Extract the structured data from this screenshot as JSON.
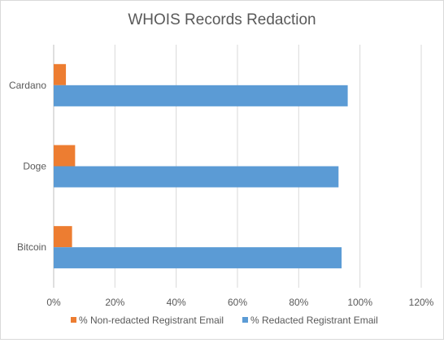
{
  "chart_data": {
    "type": "bar",
    "orientation": "horizontal",
    "title": "WHOIS Records Redaction",
    "categories": [
      "Bitcoin",
      "Doge",
      "Cardano"
    ],
    "series": [
      {
        "name": "% Redacted Registrant Email",
        "color": "#5b9bd5",
        "values": [
          0.94,
          0.93,
          0.96
        ]
      },
      {
        "name": "% Non-redacted Registrant Email",
        "color": "#ed7d31",
        "values": [
          0.06,
          0.07,
          0.04
        ]
      }
    ],
    "xlim": [
      0,
      1.2
    ],
    "xticks": [
      0,
      0.2,
      0.4,
      0.6,
      0.8,
      1.0,
      1.2
    ],
    "xtick_labels": [
      "0%",
      "20%",
      "40%",
      "60%",
      "80%",
      "100%",
      "120%"
    ],
    "grid": "vertical",
    "legend_position": "bottom",
    "legend_order": [
      "% Non-redacted Registrant Email",
      "% Redacted Registrant Email"
    ]
  }
}
